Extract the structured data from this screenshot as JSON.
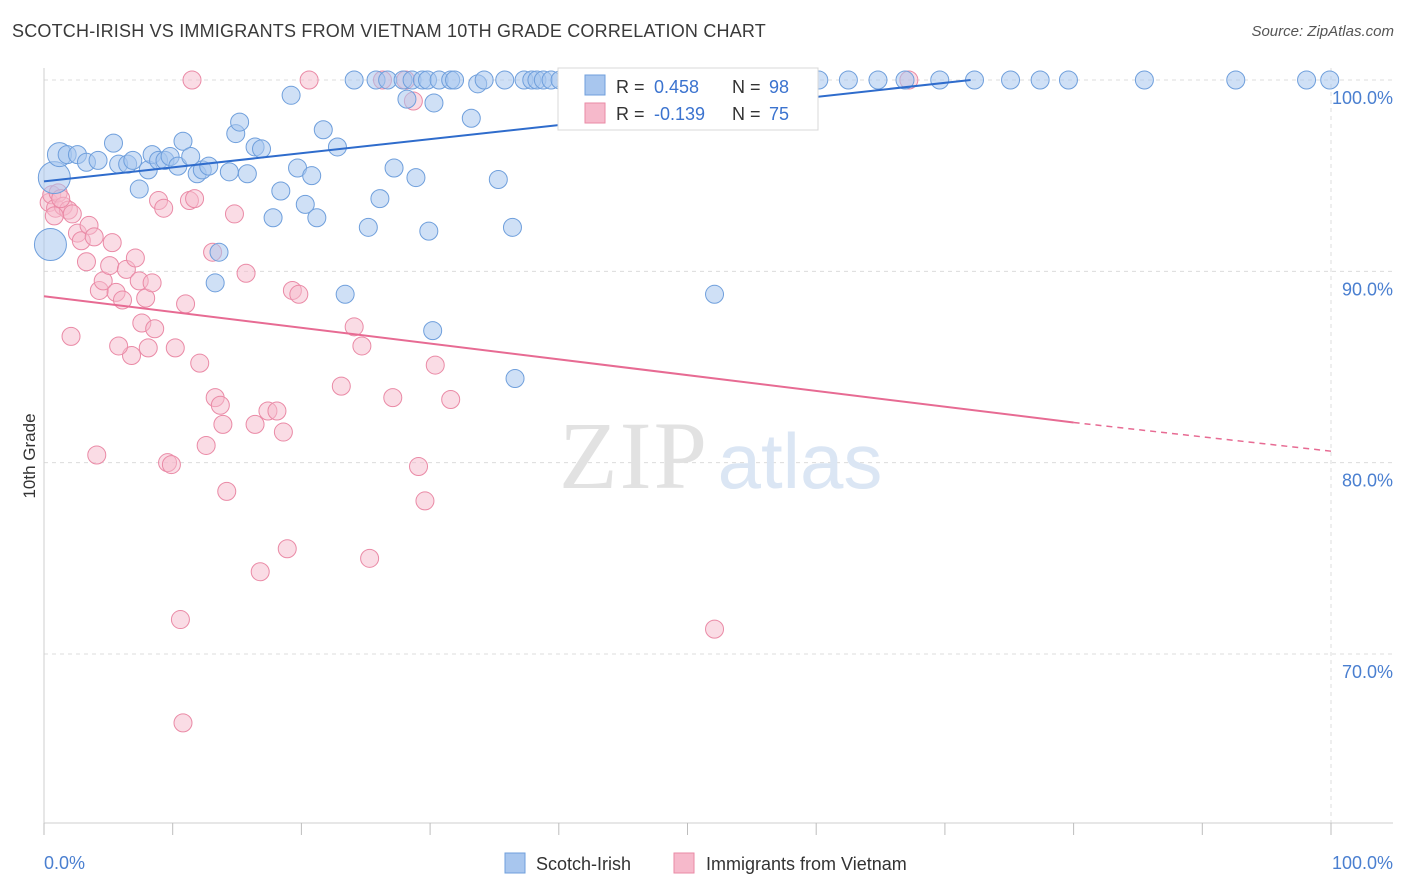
{
  "header": {
    "title": "SCOTCH-IRISH VS IMMIGRANTS FROM VIETNAM 10TH GRADE CORRELATION CHART",
    "source": "Source: ZipAtlas.com"
  },
  "colors": {
    "blue_fill": "#a8c6ee",
    "blue_stroke": "#6f9fdc",
    "blue_line": "#2f6ccc",
    "pink_fill": "#f6b9cb",
    "pink_stroke": "#ea8aa6",
    "pink_line": "#e76b93",
    "tick_label": "#4a7fd0",
    "grid": "#dcdcdc"
  },
  "watermark": {
    "zip": "ZIP",
    "atlas": "atlas"
  },
  "legend_stats": [
    {
      "r_label": "R = ",
      "r_value": "0.458",
      "n_label": "N = ",
      "n_value": "98"
    },
    {
      "r_label": "R = ",
      "r_value": "-0.139",
      "n_label": "N = ",
      "n_value": "75"
    }
  ],
  "chart_data": {
    "type": "scatter",
    "title": "SCOTCH-IRISH VS IMMIGRANTS FROM VIETNAM 10TH GRADE CORRELATION CHART",
    "xlabel": "",
    "ylabel": "10th Grade",
    "xlim": [
      0,
      100
    ],
    "ylim": [
      61,
      101.5
    ],
    "x_tick_labels": [
      "0.0%",
      "100.0%"
    ],
    "y_ticks": [
      70,
      80,
      90,
      100
    ],
    "y_tick_labels": [
      "70.0%",
      "80.0%",
      "90.0%",
      "100.0%"
    ],
    "grid": true,
    "legend_position": "bottom-center",
    "series": [
      {
        "name": "Scotch-Irish",
        "color": "#a8c6ee",
        "trend": {
          "x": [
            0,
            72
          ],
          "y": [
            94.7,
            100.0
          ]
        },
        "points": [
          [
            0.8,
            94.9,
            3
          ],
          [
            0.5,
            91.4,
            3
          ],
          [
            1.2,
            96.1,
            2
          ],
          [
            1.8,
            96.1,
            1
          ],
          [
            2.6,
            96.1,
            1
          ],
          [
            3.3,
            95.7,
            1
          ],
          [
            4.2,
            95.8,
            1
          ],
          [
            5.4,
            96.7,
            1
          ],
          [
            5.8,
            95.6,
            1
          ],
          [
            6.5,
            95.6,
            1
          ],
          [
            6.9,
            95.8,
            1
          ],
          [
            7.4,
            94.3,
            1
          ],
          [
            8.1,
            95.3,
            1
          ],
          [
            8.4,
            96.1,
            1
          ],
          [
            8.9,
            95.8,
            1
          ],
          [
            9.4,
            95.8,
            1
          ],
          [
            9.8,
            96.0,
            1
          ],
          [
            10.4,
            95.5,
            1
          ],
          [
            10.8,
            96.8,
            1
          ],
          [
            11.4,
            96.0,
            1
          ],
          [
            11.9,
            95.1,
            1
          ],
          [
            12.3,
            95.3,
            1
          ],
          [
            12.8,
            95.5,
            1
          ],
          [
            13.6,
            91.0,
            1
          ],
          [
            13.3,
            89.4,
            1
          ],
          [
            14.4,
            95.2,
            1
          ],
          [
            14.9,
            97.2,
            1
          ],
          [
            15.2,
            97.8,
            1
          ],
          [
            15.8,
            95.1,
            1
          ],
          [
            16.4,
            96.5,
            1
          ],
          [
            16.9,
            96.4,
            1
          ],
          [
            17.8,
            92.8,
            1
          ],
          [
            18.4,
            94.2,
            1
          ],
          [
            19.2,
            99.2,
            1
          ],
          [
            19.7,
            95.4,
            1
          ],
          [
            20.3,
            93.5,
            1
          ],
          [
            20.8,
            95.0,
            1
          ],
          [
            21.2,
            92.8,
            1
          ],
          [
            21.7,
            97.4,
            1
          ],
          [
            22.8,
            96.5,
            1
          ],
          [
            23.4,
            88.8,
            1
          ],
          [
            24.1,
            100.0,
            1
          ],
          [
            25.2,
            92.3,
            1
          ],
          [
            25.8,
            100.0,
            1
          ],
          [
            26.1,
            93.8,
            1
          ],
          [
            26.7,
            100.0,
            1
          ],
          [
            27.2,
            95.4,
            1
          ],
          [
            27.9,
            100.0,
            1
          ],
          [
            28.2,
            99.0,
            1
          ],
          [
            28.6,
            100.0,
            1
          ],
          [
            28.9,
            94.9,
            1
          ],
          [
            29.4,
            100.0,
            1
          ],
          [
            29.8,
            100.0,
            1
          ],
          [
            30.3,
            98.8,
            1
          ],
          [
            30.7,
            100.0,
            1
          ],
          [
            30.2,
            86.9,
            1
          ],
          [
            29.9,
            92.1,
            1
          ],
          [
            31.6,
            100.0,
            1
          ],
          [
            31.9,
            100.0,
            1
          ],
          [
            33.2,
            98.0,
            1
          ],
          [
            33.7,
            99.8,
            1
          ],
          [
            34.2,
            100.0,
            1
          ],
          [
            35.3,
            94.8,
            1
          ],
          [
            35.8,
            100.0,
            1
          ],
          [
            36.4,
            92.3,
            1
          ],
          [
            36.6,
            84.4,
            1
          ],
          [
            37.3,
            100.0,
            1
          ],
          [
            37.9,
            100.0,
            1
          ],
          [
            38.3,
            100.0,
            1
          ],
          [
            38.8,
            100.0,
            1
          ],
          [
            39.4,
            100.0,
            1
          ],
          [
            40.1,
            100.0,
            1
          ],
          [
            41.2,
            100.0,
            1
          ],
          [
            42.4,
            100.0,
            1
          ],
          [
            43.6,
            100.0,
            1
          ],
          [
            44.8,
            100.0,
            1
          ],
          [
            45.9,
            100.0,
            1
          ],
          [
            47.2,
            100.0,
            1
          ],
          [
            48.6,
            100.0,
            1
          ],
          [
            50.1,
            100.0,
            1
          ],
          [
            51.7,
            100.0,
            1
          ],
          [
            52.1,
            88.8,
            1
          ],
          [
            53.8,
            100.0,
            1
          ],
          [
            55.3,
            98.0,
            1
          ],
          [
            57.6,
            100.0,
            1
          ],
          [
            60.2,
            100.0,
            1
          ],
          [
            62.5,
            100.0,
            1
          ],
          [
            64.8,
            100.0,
            1
          ],
          [
            66.9,
            100.0,
            1
          ],
          [
            69.6,
            100.0,
            1
          ],
          [
            72.3,
            100.0,
            1
          ],
          [
            75.1,
            100.0,
            1
          ],
          [
            77.4,
            100.0,
            1
          ],
          [
            79.6,
            100.0,
            1
          ],
          [
            85.5,
            100.0,
            1
          ],
          [
            92.6,
            100.0,
            1
          ],
          [
            98.1,
            100.0,
            1
          ],
          [
            99.9,
            100.0,
            1
          ]
        ]
      },
      {
        "name": "Immigrants from Vietnam",
        "color": "#f6b9cb",
        "trend": {
          "x": [
            0,
            80
          ],
          "y": [
            88.7,
            82.1
          ],
          "dashed_x": [
            80,
            100
          ],
          "dashed_y": [
            82.1,
            80.6
          ]
        },
        "points": [
          [
            0.4,
            93.6,
            1
          ],
          [
            0.6,
            94.0,
            1
          ],
          [
            0.9,
            93.3,
            1
          ],
          [
            1.1,
            94.1,
            1
          ],
          [
            1.5,
            93.4,
            1
          ],
          [
            1.9,
            93.2,
            1
          ],
          [
            2.2,
            93.0,
            1
          ],
          [
            2.6,
            92.0,
            1
          ],
          [
            2.9,
            91.6,
            1
          ],
          [
            3.3,
            90.5,
            1
          ],
          [
            3.5,
            92.4,
            1
          ],
          [
            3.9,
            91.8,
            1
          ],
          [
            4.3,
            89.0,
            1
          ],
          [
            4.6,
            89.5,
            1
          ],
          [
            5.1,
            90.3,
            1
          ],
          [
            5.3,
            91.5,
            1
          ],
          [
            5.6,
            88.9,
            1
          ],
          [
            6.1,
            88.5,
            1
          ],
          [
            6.4,
            90.1,
            1
          ],
          [
            6.8,
            85.6,
            1
          ],
          [
            7.1,
            90.7,
            1
          ],
          [
            7.4,
            89.5,
            1
          ],
          [
            7.6,
            87.3,
            1
          ],
          [
            7.9,
            88.6,
            1
          ],
          [
            8.1,
            86.0,
            1
          ],
          [
            8.4,
            89.4,
            1
          ],
          [
            8.6,
            87.0,
            1
          ],
          [
            8.9,
            93.7,
            1
          ],
          [
            9.3,
            93.3,
            1
          ],
          [
            9.6,
            80.0,
            1
          ],
          [
            9.9,
            79.9,
            1
          ],
          [
            10.2,
            86.0,
            1
          ],
          [
            10.6,
            71.8,
            1
          ],
          [
            10.8,
            66.4,
            1
          ],
          [
            11.0,
            88.3,
            1
          ],
          [
            11.3,
            93.7,
            1
          ],
          [
            11.7,
            93.8,
            1
          ],
          [
            12.1,
            85.2,
            1
          ],
          [
            12.6,
            80.9,
            1
          ],
          [
            13.1,
            91.0,
            1
          ],
          [
            13.3,
            83.4,
            1
          ],
          [
            13.7,
            83.0,
            1
          ],
          [
            13.9,
            82.0,
            1
          ],
          [
            14.2,
            78.5,
            1
          ],
          [
            14.8,
            93.0,
            1
          ],
          [
            16.4,
            82.0,
            1
          ],
          [
            16.8,
            74.3,
            1
          ],
          [
            17.4,
            82.7,
            1
          ],
          [
            18.1,
            82.7,
            1
          ],
          [
            18.6,
            81.6,
            1
          ],
          [
            18.9,
            75.5,
            1
          ],
          [
            19.3,
            89.0,
            1
          ],
          [
            19.8,
            88.8,
            1
          ],
          [
            20.6,
            100.0,
            1
          ],
          [
            23.1,
            84.0,
            1
          ],
          [
            24.1,
            87.1,
            1
          ],
          [
            24.7,
            86.1,
            1
          ],
          [
            25.3,
            75.0,
            1
          ],
          [
            26.3,
            100.0,
            1
          ],
          [
            27.1,
            83.4,
            1
          ],
          [
            28.1,
            100.0,
            1
          ],
          [
            28.7,
            98.9,
            1
          ],
          [
            29.1,
            79.8,
            1
          ],
          [
            29.6,
            78.0,
            1
          ],
          [
            30.4,
            85.1,
            1
          ],
          [
            31.6,
            83.3,
            1
          ],
          [
            52.1,
            71.3,
            1
          ],
          [
            67.2,
            100.0,
            1
          ],
          [
            5.8,
            86.1,
            1
          ],
          [
            4.1,
            80.4,
            1
          ],
          [
            2.1,
            86.6,
            1
          ],
          [
            11.5,
            100.0,
            1
          ],
          [
            15.7,
            89.9,
            1
          ],
          [
            1.3,
            93.8,
            1
          ],
          [
            0.8,
            92.9,
            1
          ]
        ]
      }
    ]
  },
  "bottom_legend": [
    {
      "label": "Scotch-Irish"
    },
    {
      "label": "Immigrants from Vietnam"
    }
  ]
}
